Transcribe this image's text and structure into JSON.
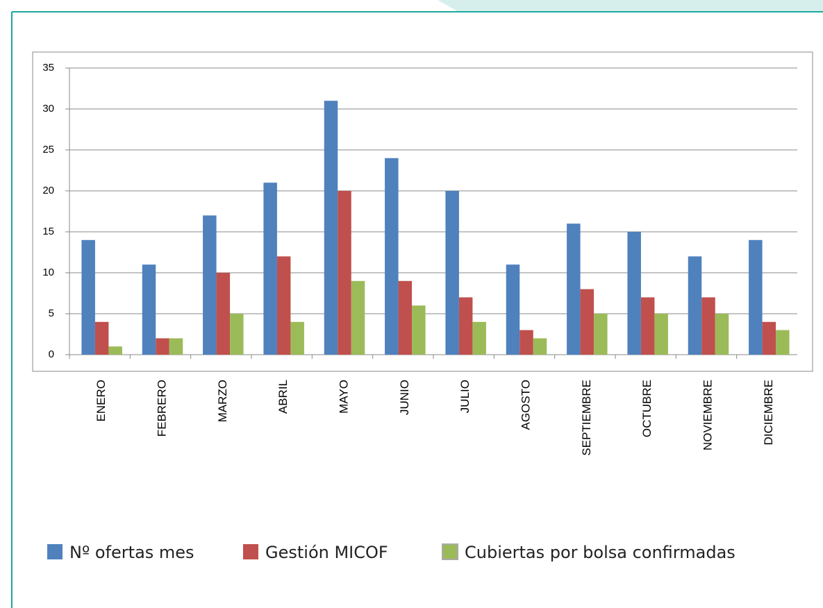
{
  "chart_data": {
    "type": "bar",
    "categories": [
      "ENERO",
      "FEBRERO",
      "MARZO",
      "ABRIL",
      "MAYO",
      "JUNIO",
      "JULIO",
      "AGOSTO",
      "SEPTIEMBRE",
      "OCTUBRE",
      "NOVIEMBRE",
      "DICIEMBRE"
    ],
    "series": [
      {
        "name": "Nº ofertas mes",
        "color": "#4f81bd",
        "values": [
          14,
          11,
          17,
          21,
          31,
          24,
          20,
          11,
          16,
          15,
          12,
          14
        ]
      },
      {
        "name": "Gestión MICOF",
        "color": "#c0504d",
        "values": [
          4,
          2,
          10,
          12,
          20,
          9,
          7,
          3,
          8,
          7,
          7,
          4
        ]
      },
      {
        "name": "Cubiertas por bolsa confirmadas",
        "color": "#9bbb59",
        "values": [
          1,
          2,
          5,
          4,
          9,
          6,
          4,
          2,
          5,
          5,
          5,
          3
        ]
      }
    ],
    "ylim": [
      0,
      35
    ],
    "yticks": [
      0,
      5,
      10,
      15,
      20,
      25,
      30,
      35
    ],
    "grid": true,
    "legend": "bottom"
  }
}
